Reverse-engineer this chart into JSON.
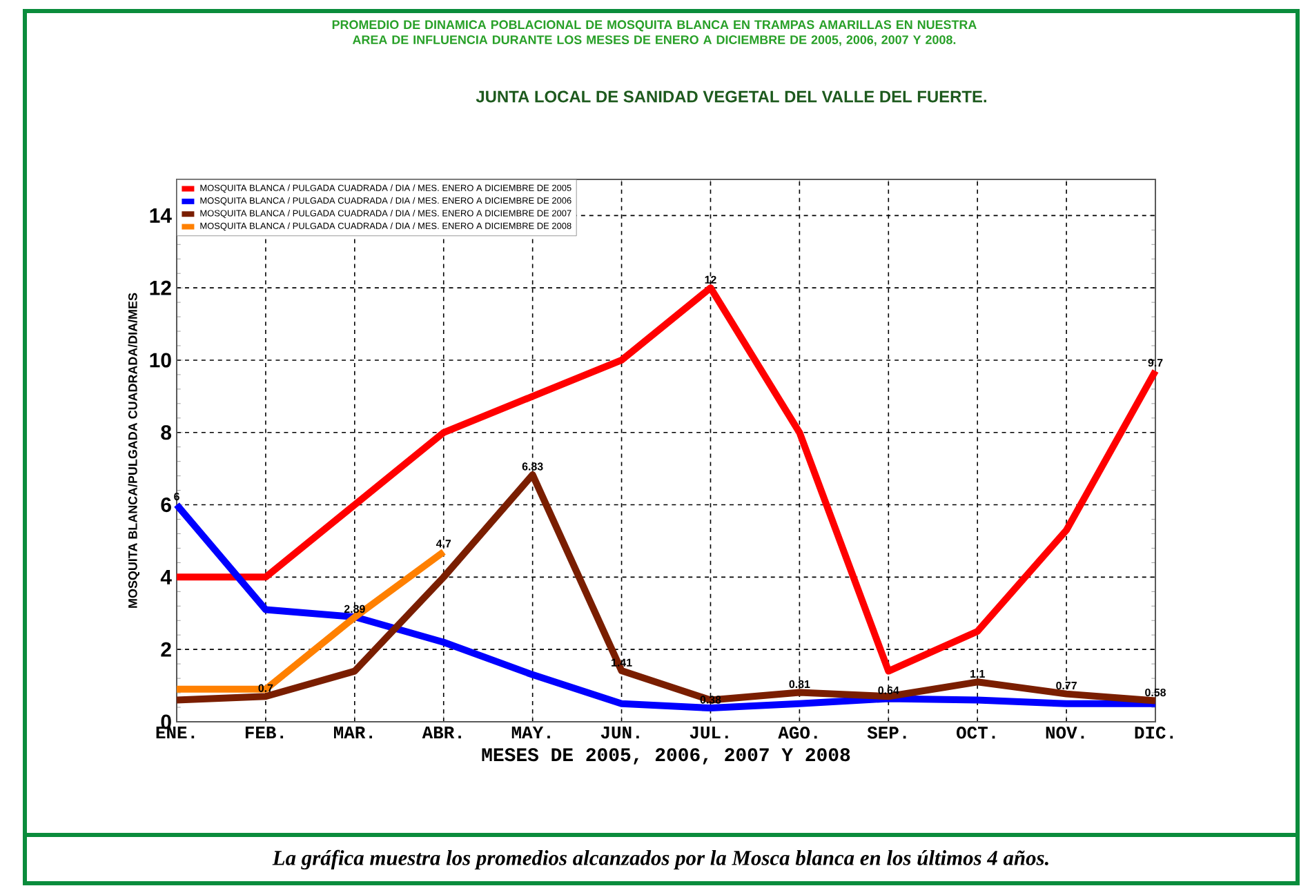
{
  "chart_data": {
    "type": "line",
    "title": "PROMEDIO DE DINAMICA POBLACIONAL DE MOSQUITA BLANCA EN TRAMPAS AMARILLAS EN NUESTRA AREA DE INFLUENCIA DURANTE LOS MESES DE ENERO A DICIEMBRE DE 2005, 2006, 2007 Y 2008.",
    "subtitle": "JUNTA LOCAL DE  SANIDAD VEGETAL DEL VALLE DEL FUERTE.",
    "xlabel": "MESES DE 2005, 2006, 2007 Y 2008",
    "ylabel": "MOSQUITA BLANCA/PULGADA CUADRADA/DIA/MES",
    "annotations": [
      "La gráfica muestra los promedios alcanzados por la Mosca blanca en los últimos 4 años."
    ],
    "categories": [
      "ENE.",
      "FEB.",
      "MAR.",
      "ABR.",
      "MAY.",
      "JUN.",
      "JUL.",
      "AGO.",
      "SEP.",
      "OCT.",
      "NOV.",
      "DIC."
    ],
    "series": [
      {
        "name": "MOSQUITA BLANCA / PULGADA CUADRADA / DIA / MES. ENERO A DICIEMBRE DE 2005",
        "color": "#ff0000",
        "values": [
          4,
          4,
          6,
          8,
          9,
          10,
          12,
          8,
          1.4,
          2.5,
          5.3,
          9.7
        ],
        "value_labels": [
          null,
          null,
          null,
          null,
          null,
          null,
          "12",
          null,
          null,
          null,
          null,
          "9.7"
        ]
      },
      {
        "name": "MOSQUITA BLANCA / PULGADA CUADRADA / DIA / MES. ENERO A DICIEMBRE DE 2006",
        "color": "#0000ff",
        "values": [
          6,
          3.1,
          2.9,
          2.2,
          1.3,
          0.5,
          0.38,
          0.5,
          0.64,
          0.6,
          0.5,
          0.5
        ],
        "value_labels": [
          "6",
          null,
          null,
          null,
          null,
          null,
          "0.38",
          null,
          "0.64",
          null,
          null,
          null
        ]
      },
      {
        "name": "MOSQUITA BLANCA / PULGADA CUADRADA / DIA / MES. ENERO A DICIEMBRE DE 2007",
        "color": "#7a1e00",
        "values": [
          0.6,
          0.7,
          1.4,
          4,
          6.83,
          1.41,
          0.6,
          0.81,
          0.7,
          1.1,
          0.77,
          0.58
        ],
        "value_labels": [
          null,
          "0.7",
          null,
          null,
          "6.83",
          "1.41",
          null,
          "0.81",
          null,
          "1.1",
          "0.77",
          "0.58"
        ]
      },
      {
        "name": "MOSQUITA BLANCA / PULGADA CUADRADA / DIA / MES. ENERO A DICIEMBRE DE 2008",
        "color": "#ff8000",
        "values": [
          0.9,
          0.9,
          2.89,
          4.7,
          null,
          null,
          null,
          null,
          null,
          null,
          null,
          null
        ],
        "value_labels": [
          null,
          null,
          "2.89",
          "4.7",
          null,
          null,
          null,
          null,
          null,
          null,
          null,
          null
        ]
      }
    ],
    "ylim": [
      0,
      15
    ],
    "yticks": [
      0,
      2,
      4,
      6,
      8,
      10,
      12,
      14
    ],
    "grid": true,
    "legend": "top left",
    "marker": "none",
    "line_style": "solid"
  }
}
